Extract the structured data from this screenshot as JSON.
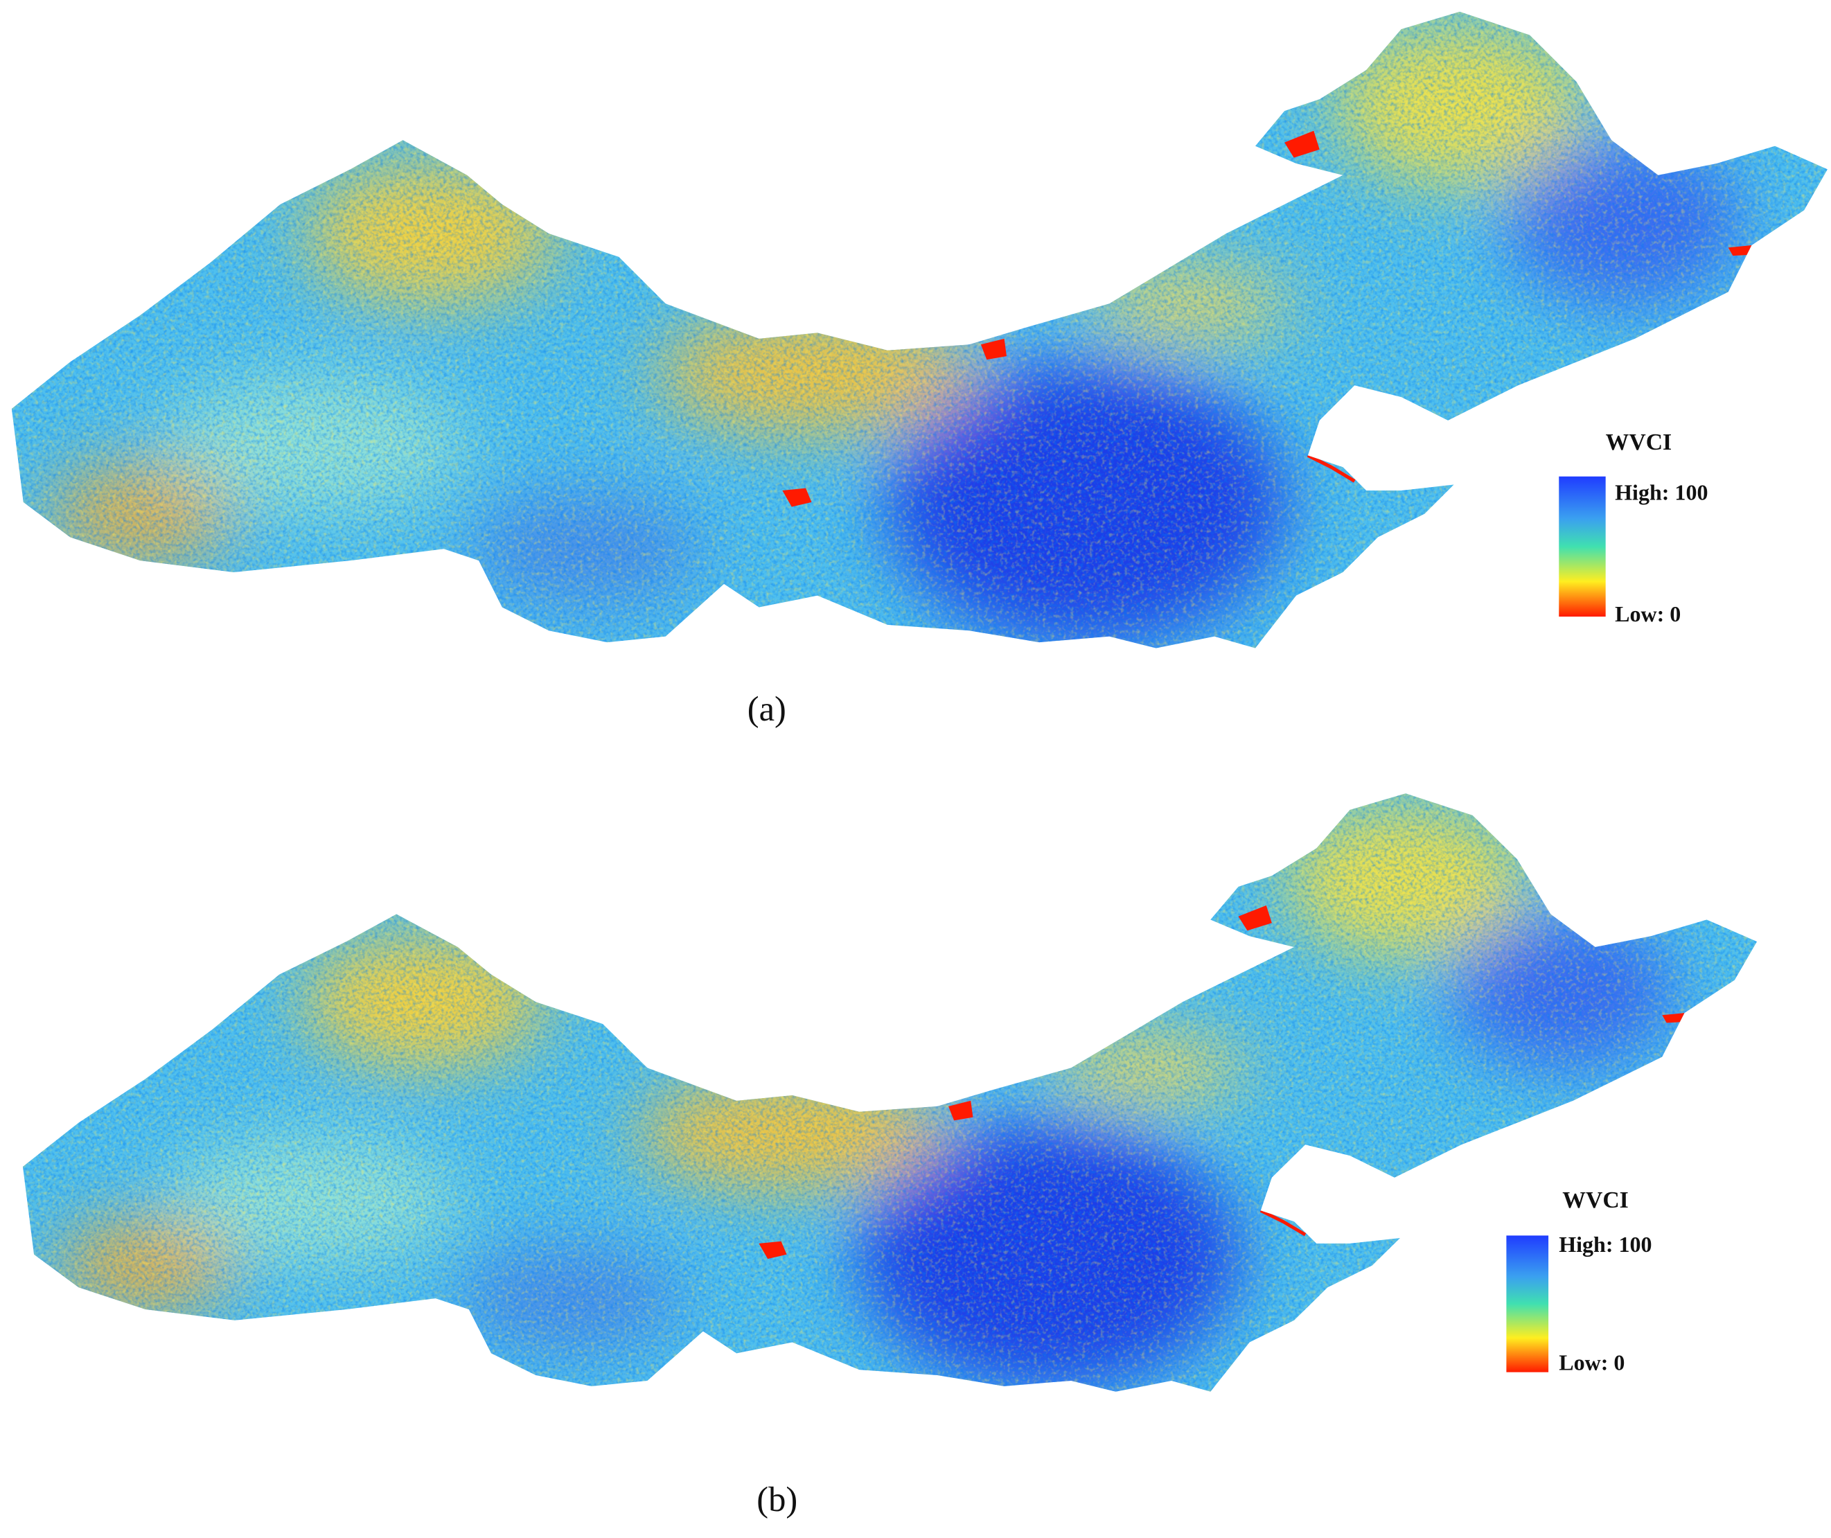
{
  "panels": [
    {
      "caption": "(a)",
      "legend": {
        "title": "WVCI",
        "high": "High: 100",
        "low": "Low: 0"
      }
    },
    {
      "caption": "(b)",
      "legend": {
        "title": "WVCI",
        "high": "High: 100",
        "low": "Low: 0"
      }
    }
  ]
}
